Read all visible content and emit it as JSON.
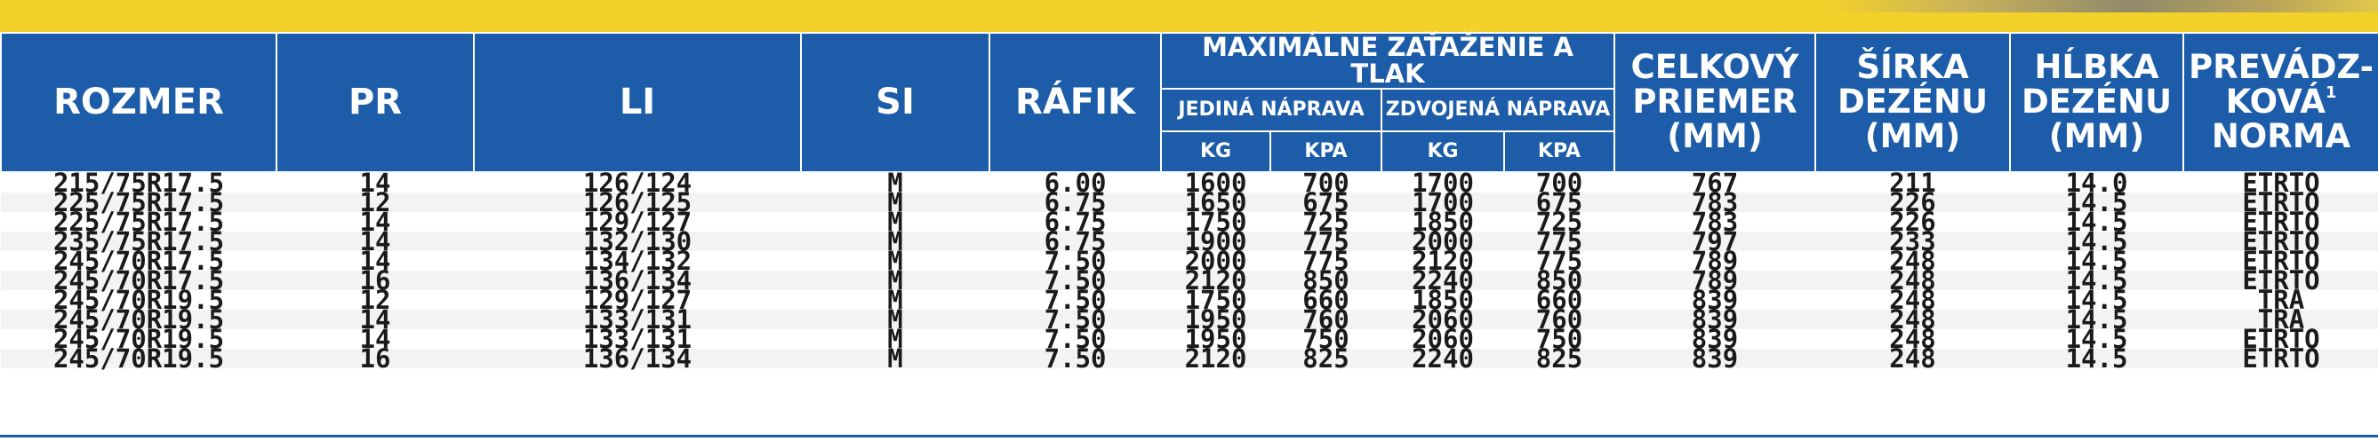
{
  "headers": {
    "rozmer": "ROZMER",
    "pr": "PR",
    "li": "LI",
    "si": "SI",
    "rafik": "RÁFIK",
    "load_group": "MAXIMÁLNE ZAŤAŽENIE A TLAK",
    "single_axle": "JEDINÁ NÁPRAVA",
    "dual_axle": "ZDVOJENÁ NÁPRAVA",
    "unit_kg": "KG",
    "unit_kpa": "KPA",
    "diameter": [
      "CELKOVÝ",
      "PRIEMER",
      "(MM)"
    ],
    "tread_width": [
      "ŠÍRKA",
      "DEZÉNU",
      "(MM)"
    ],
    "tread_depth": [
      "HĹBKA",
      "DEZÉNU",
      "(MM)"
    ],
    "norm": [
      "PREVÁDZ-",
      "KOVÁ",
      "NORMA"
    ],
    "norm_note": "1"
  },
  "rows": [
    {
      "rozmer": "215/75R17.5",
      "pr": "14",
      "li": "126/124",
      "si": "M",
      "rafik": "6.00",
      "s_kg": "1600",
      "s_kpa": "700",
      "d_kg": "1700",
      "d_kpa": "700",
      "diameter": "767",
      "width": "211",
      "depth": "14.0",
      "norm": "ETRTO"
    },
    {
      "rozmer": "225/75R17.5",
      "pr": "12",
      "li": "126/125",
      "si": "M",
      "rafik": "6.75",
      "s_kg": "1650",
      "s_kpa": "675",
      "d_kg": "1700",
      "d_kpa": "675",
      "diameter": "783",
      "width": "226",
      "depth": "14.5",
      "norm": "ETRTO"
    },
    {
      "rozmer": "225/75R17.5",
      "pr": "14",
      "li": "129/127",
      "si": "M",
      "rafik": "6.75",
      "s_kg": "1750",
      "s_kpa": "725",
      "d_kg": "1850",
      "d_kpa": "725",
      "diameter": "783",
      "width": "226",
      "depth": "14.5",
      "norm": "ETRTO"
    },
    {
      "rozmer": "235/75R17.5",
      "pr": "14",
      "li": "132/130",
      "si": "M",
      "rafik": "6.75",
      "s_kg": "1900",
      "s_kpa": "775",
      "d_kg": "2000",
      "d_kpa": "775",
      "diameter": "797",
      "width": "233",
      "depth": "14.5",
      "norm": "ETRTO"
    },
    {
      "rozmer": "245/70R17.5",
      "pr": "14",
      "li": "134/132",
      "si": "M",
      "rafik": "7.50",
      "s_kg": "2000",
      "s_kpa": "775",
      "d_kg": "2120",
      "d_kpa": "775",
      "diameter": "789",
      "width": "248",
      "depth": "14.5",
      "norm": "ETRTO"
    },
    {
      "rozmer": "245/70R17.5",
      "pr": "16",
      "li": "136/134",
      "si": "M",
      "rafik": "7.50",
      "s_kg": "2120",
      "s_kpa": "850",
      "d_kg": "2240",
      "d_kpa": "850",
      "diameter": "789",
      "width": "248",
      "depth": "14.5",
      "norm": "ETRTO"
    },
    {
      "rozmer": "245/70R19.5",
      "pr": "12",
      "li": "129/127",
      "si": "M",
      "rafik": "7.50",
      "s_kg": "1750",
      "s_kpa": "660",
      "d_kg": "1850",
      "d_kpa": "660",
      "diameter": "839",
      "width": "248",
      "depth": "14.5",
      "norm": "TRA"
    },
    {
      "rozmer": "245/70R19.5",
      "pr": "14",
      "li": "133/131",
      "si": "M",
      "rafik": "7.50",
      "s_kg": "1950",
      "s_kpa": "760",
      "d_kg": "2060",
      "d_kpa": "760",
      "diameter": "839",
      "width": "248",
      "depth": "14.5",
      "norm": "TRA"
    },
    {
      "rozmer": "245/70R19.5",
      "pr": "14",
      "li": "133/131",
      "si": "M",
      "rafik": "7.50",
      "s_kg": "1950",
      "s_kpa": "750",
      "d_kg": "2060",
      "d_kpa": "750",
      "diameter": "839",
      "width": "248",
      "depth": "14.5",
      "norm": "ETRTO"
    },
    {
      "rozmer": "245/70R19.5",
      "pr": "16",
      "li": "136/134",
      "si": "M",
      "rafik": "7.50",
      "s_kg": "2120",
      "s_kpa": "825",
      "d_kg": "2240",
      "d_kpa": "825",
      "diameter": "839",
      "width": "248",
      "depth": "14.5",
      "norm": "ETRTO"
    }
  ]
}
